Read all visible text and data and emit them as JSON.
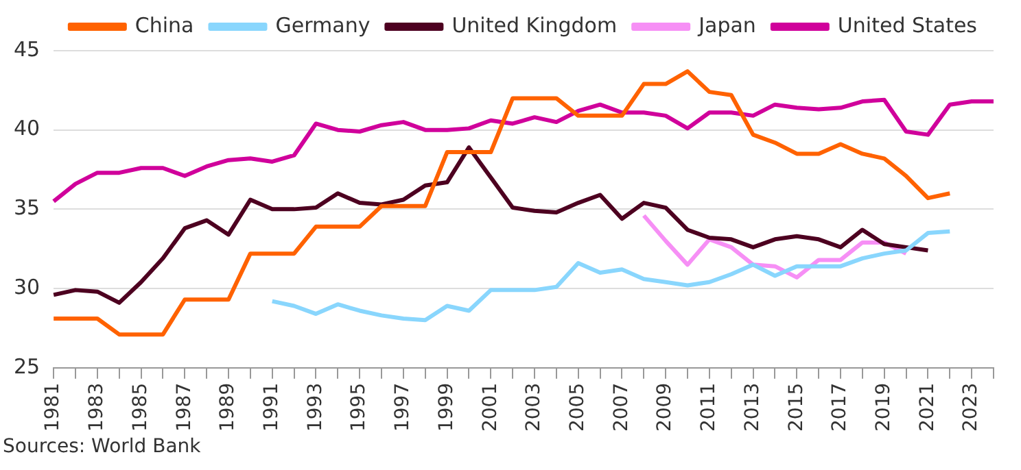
{
  "chart_data": {
    "type": "line",
    "categories": [
      "1981",
      null,
      "1983",
      null,
      "1985",
      null,
      "1987",
      null,
      "1989",
      null,
      "1991",
      null,
      "1993",
      null,
      "1995",
      null,
      "1997",
      null,
      "1999",
      null,
      "2001",
      null,
      "2003",
      null,
      "2005",
      null,
      "2007",
      null,
      "2009",
      null,
      "2011",
      null,
      "2013",
      null,
      "2015",
      null,
      "2017",
      null,
      "2019",
      null,
      "2021",
      null,
      "2023",
      null
    ],
    "series": [
      {
        "name": "China",
        "color": "#ff6200",
        "values": [
          28.1,
          28.1,
          28.1,
          27.1,
          27.1,
          27.1,
          29.3,
          29.3,
          29.3,
          32.2,
          32.2,
          32.2,
          33.9,
          33.9,
          33.9,
          35.2,
          35.2,
          35.2,
          38.6,
          38.6,
          38.6,
          42.0,
          42.0,
          42.0,
          40.9,
          40.9,
          40.9,
          42.9,
          42.9,
          43.7,
          42.4,
          42.2,
          39.7,
          39.2,
          38.5,
          38.5,
          39.1,
          38.5,
          38.2,
          37.1,
          35.7,
          36.0,
          null,
          null
        ]
      },
      {
        "name": "Germany",
        "color": "#89d6fd",
        "values": [
          null,
          null,
          null,
          null,
          null,
          null,
          null,
          null,
          null,
          null,
          29.2,
          28.9,
          28.4,
          29.0,
          28.6,
          28.3,
          28.1,
          28.0,
          28.9,
          28.6,
          29.9,
          29.9,
          29.9,
          30.1,
          31.6,
          31.0,
          31.2,
          30.6,
          30.4,
          30.2,
          30.4,
          30.9,
          31.5,
          30.8,
          31.4,
          31.4,
          31.4,
          31.9,
          32.2,
          32.4,
          33.5,
          33.6,
          null,
          null
        ]
      },
      {
        "name": "United Kingdom",
        "color": "#4d0020",
        "values": [
          29.6,
          29.9,
          29.8,
          29.1,
          30.4,
          31.9,
          33.8,
          34.3,
          33.4,
          35.6,
          35.0,
          35.0,
          35.1,
          36.0,
          35.4,
          35.3,
          35.6,
          36.5,
          36.7,
          38.9,
          37.0,
          35.1,
          34.9,
          34.8,
          35.4,
          35.9,
          34.4,
          35.4,
          35.1,
          33.7,
          33.2,
          33.1,
          32.6,
          33.1,
          33.3,
          33.1,
          32.6,
          33.7,
          32.8,
          32.6,
          32.4,
          null,
          null,
          null
        ]
      },
      {
        "name": "Japan",
        "color": "#f68ff5",
        "values": [
          null,
          null,
          null,
          null,
          null,
          null,
          null,
          null,
          null,
          null,
          null,
          null,
          null,
          null,
          null,
          null,
          null,
          null,
          null,
          null,
          null,
          null,
          null,
          null,
          null,
          null,
          null,
          34.6,
          33.0,
          31.5,
          33.1,
          32.6,
          31.5,
          31.4,
          30.7,
          31.8,
          31.8,
          32.9,
          32.9,
          32.2,
          null,
          null,
          null,
          null
        ]
      },
      {
        "name": "United States",
        "color": "#d0009b",
        "values": [
          35.5,
          36.6,
          37.3,
          37.3,
          37.6,
          37.6,
          37.1,
          37.7,
          38.1,
          38.2,
          38.0,
          38.4,
          40.4,
          40.0,
          39.9,
          40.3,
          40.5,
          40.0,
          40.0,
          40.1,
          40.6,
          40.4,
          40.8,
          40.5,
          41.2,
          41.6,
          41.1,
          41.1,
          40.9,
          40.1,
          41.1,
          41.1,
          40.9,
          41.6,
          41.4,
          41.3,
          41.4,
          41.8,
          41.9,
          39.9,
          39.7,
          41.6,
          41.8,
          41.8
        ]
      }
    ],
    "ylim": [
      25,
      45
    ],
    "yticks": [
      25,
      30,
      35,
      40,
      45
    ],
    "grid": "y",
    "legend": "top",
    "marker": "none",
    "annotations": [
      "Sources: World Bank"
    ]
  }
}
